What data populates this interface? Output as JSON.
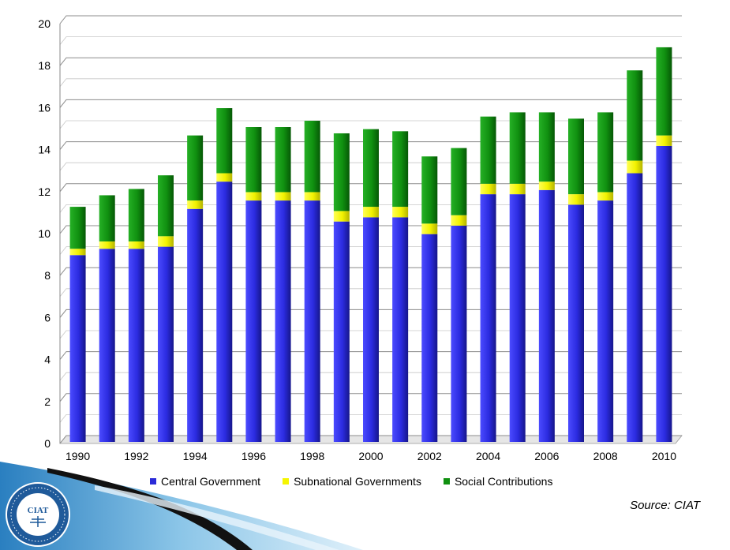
{
  "chart_data": {
    "type": "bar",
    "stacked": true,
    "title": "",
    "xlabel": "",
    "ylabel": "",
    "ylim": [
      0,
      20
    ],
    "yticks": [
      0,
      2,
      4,
      6,
      8,
      10,
      12,
      14,
      16,
      18,
      20
    ],
    "grid": true,
    "legend_position": "bottom",
    "categories": [
      "1990",
      "1991",
      "1992",
      "1993",
      "1994",
      "1995",
      "1996",
      "1997",
      "1998",
      "1999",
      "2000",
      "2001",
      "2002",
      "2003",
      "2004",
      "2005",
      "2006",
      "2007",
      "2008",
      "2009",
      "2010"
    ],
    "x_tick_labels": [
      "1990",
      "1992",
      "1994",
      "1996",
      "1998",
      "2000",
      "2002",
      "2004",
      "2006",
      "2008",
      "2010"
    ],
    "series": [
      {
        "name": "Central Government",
        "color": "#2b2bd8",
        "values": [
          8.9,
          9.2,
          9.2,
          9.3,
          11.1,
          12.4,
          11.5,
          11.5,
          11.5,
          10.5,
          10.7,
          10.7,
          9.9,
          10.3,
          11.8,
          11.8,
          12.0,
          11.3,
          11.5,
          12.8,
          14.1
        ]
      },
      {
        "name": "Subnational Governments",
        "color": "#f5f500",
        "values": [
          0.3,
          0.35,
          0.35,
          0.5,
          0.4,
          0.4,
          0.4,
          0.4,
          0.4,
          0.5,
          0.5,
          0.5,
          0.5,
          0.5,
          0.5,
          0.5,
          0.4,
          0.5,
          0.4,
          0.6,
          0.5
        ]
      },
      {
        "name": "Social Contributions",
        "color": "#109010",
        "values": [
          2.0,
          2.2,
          2.5,
          2.9,
          3.1,
          3.1,
          3.1,
          3.1,
          3.4,
          3.7,
          3.7,
          3.6,
          3.2,
          3.2,
          3.2,
          3.4,
          3.3,
          3.6,
          3.8,
          4.3,
          4.2
        ]
      }
    ]
  },
  "source_text": "Source: CIAT",
  "seal": {
    "ring_text": "INTER-AMERICAN CENTER OF TAX ADMINISTRATIONS",
    "center_text": "CIAT",
    "bottom_text": "ESTABLISHED IN 1967"
  }
}
